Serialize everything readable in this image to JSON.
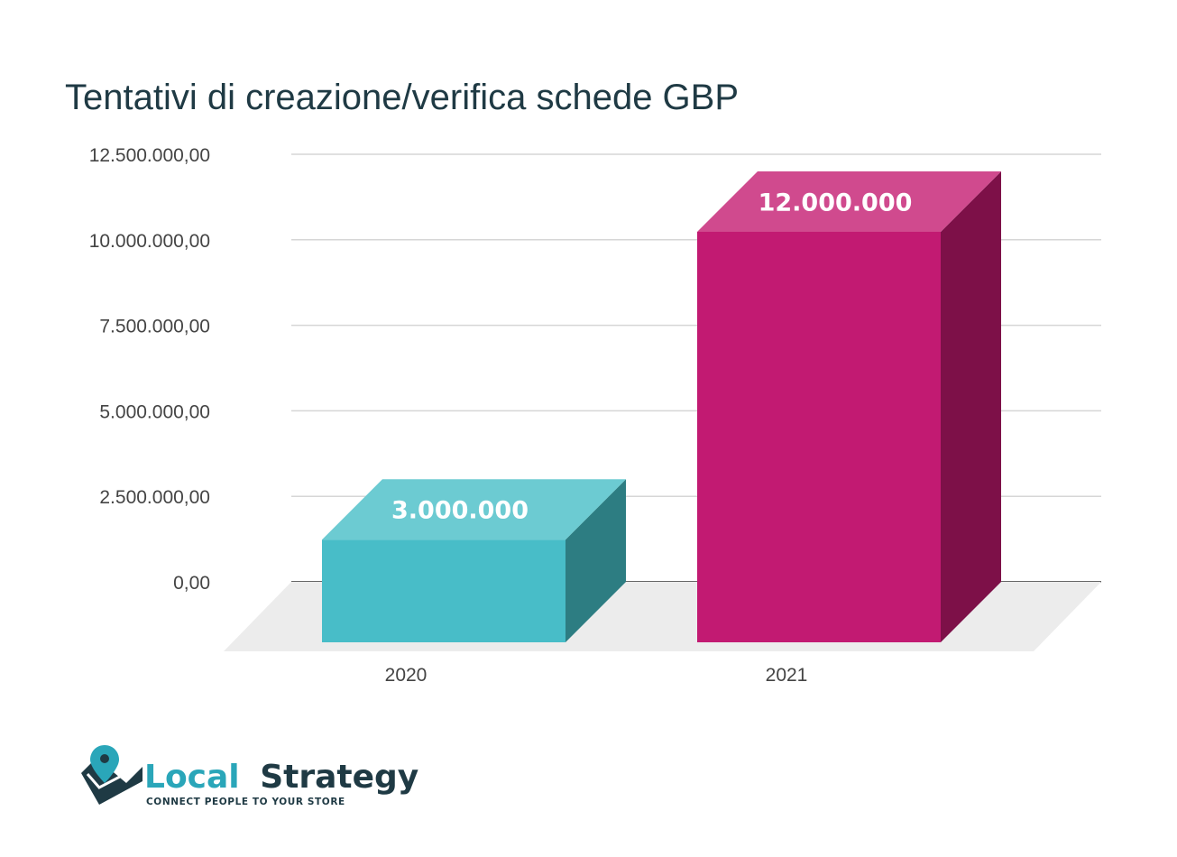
{
  "chart_data": {
    "type": "bar",
    "title": "Tentativi di creazione/verifica schede GBP",
    "xlabel": "",
    "ylabel": "",
    "categories": [
      "2020",
      "2021"
    ],
    "values": [
      3000000,
      12000000
    ],
    "data_labels": [
      "3.000.000",
      "12.000.000"
    ],
    "ylim": [
      0,
      12500000
    ],
    "yticks": [
      0,
      2500000,
      5000000,
      7500000,
      10000000,
      12500000
    ],
    "ytick_labels": [
      "0,00",
      "2.500.000,00",
      "5.000.000,00",
      "7.500.000,00",
      "10.000.000,00",
      "12.500.000,00"
    ],
    "grid": true,
    "style": "3d-column",
    "colors": {
      "2020": {
        "front": "#48bdc8",
        "top": "#6ccbd2",
        "side": "#2d7d82"
      },
      "2021": {
        "front": "#c21a72",
        "top": "#d04a8e",
        "side": "#7d1048"
      }
    }
  },
  "logo": {
    "word1": "Local",
    "word2": "Strategy",
    "tagline": "CONNECT PEOPLE TO YOUR STORE",
    "color1": "#2aa6b9",
    "color2": "#1f3a44"
  }
}
